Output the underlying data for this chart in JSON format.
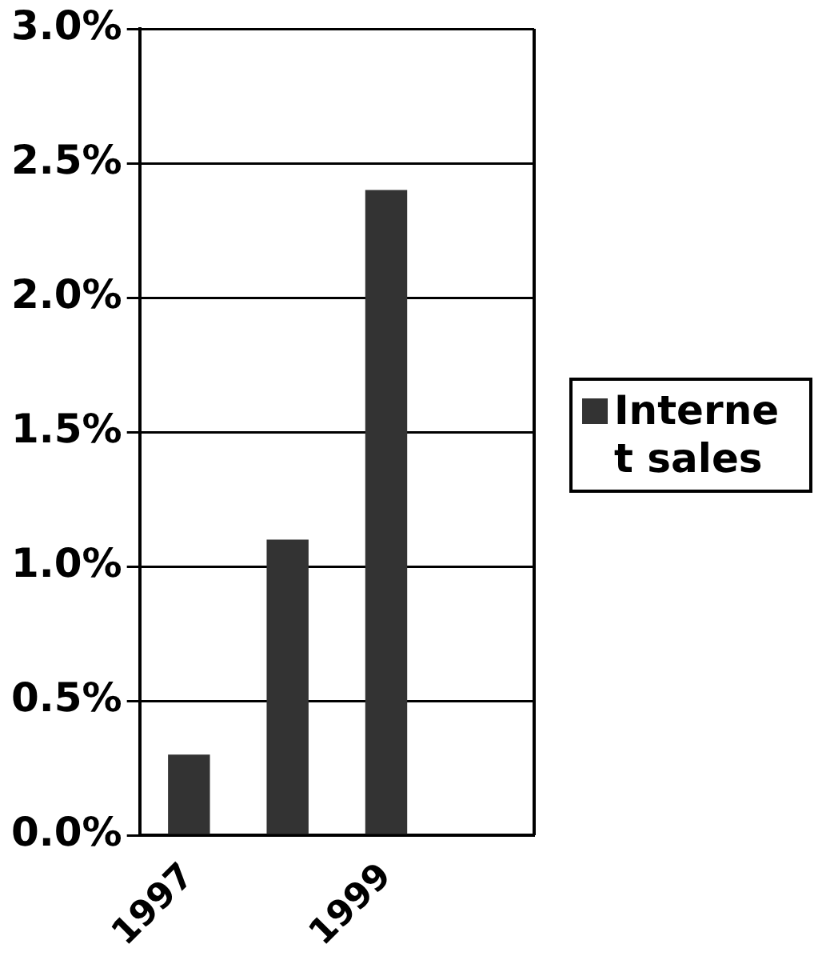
{
  "chart_data": {
    "type": "bar",
    "categories": [
      "1997",
      null,
      "1999",
      null
    ],
    "series": [
      {
        "name": "Internet sales",
        "color": "#333333",
        "values": [
          0.3,
          1.1,
          2.4,
          null
        ]
      }
    ],
    "ylim": [
      0,
      3
    ],
    "yticks": [
      {
        "value": 0,
        "label": "0.0%"
      },
      {
        "value": 0.5,
        "label": "0.5%"
      },
      {
        "value": 1,
        "label": "1.0%"
      },
      {
        "value": 1.5,
        "label": "1.5%"
      },
      {
        "value": 2,
        "label": "2.0%"
      },
      {
        "value": 2.5,
        "label": "2.5%"
      },
      {
        "value": 3,
        "label": "3.0%"
      }
    ],
    "grid": "y",
    "legend": "right"
  }
}
